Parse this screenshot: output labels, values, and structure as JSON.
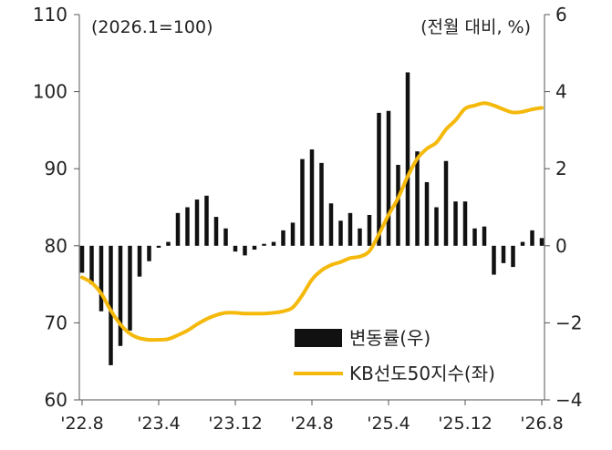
{
  "chart_data": {
    "type": "bar+line",
    "left_axis_note": "(2026.1=100)",
    "right_axis_note": "(전월 대비, %)",
    "left_axis": {
      "ylim": [
        60,
        110
      ],
      "ticks": [
        "60",
        "70",
        "80",
        "90",
        "100",
        "110"
      ]
    },
    "right_axis": {
      "ylim": [
        -4,
        6
      ],
      "ticks": [
        "-4",
        "-2",
        "0",
        "2",
        "4",
        "6"
      ]
    },
    "x_tick_labels": [
      "'22.8",
      "'23.4",
      "'23.12",
      "'24.8",
      "'25.4",
      "'25.12",
      "'26.8"
    ],
    "x_tick_months": [
      0,
      8,
      16,
      24,
      32,
      40,
      48
    ],
    "legend": [
      {
        "label": "변동률(우)",
        "kind": "bar",
        "axis": "right"
      },
      {
        "label": "KB선도50지수(좌)",
        "kind": "line",
        "axis": "left"
      }
    ],
    "colors": {
      "bar": "#111111",
      "line": "#f5b90c",
      "axis": "#555555"
    },
    "series": [
      {
        "name": "변동률(우)",
        "axis": "right",
        "type": "bar",
        "x": [
          0,
          1,
          2,
          3,
          4,
          5,
          6,
          7,
          8,
          9,
          10,
          11,
          12,
          13,
          14,
          15,
          16,
          17,
          18,
          19,
          20,
          21,
          22,
          23,
          24,
          25,
          26,
          27,
          28,
          29,
          30,
          31,
          32,
          33,
          34,
          35,
          36,
          37,
          38,
          39,
          40,
          41,
          42,
          43,
          44,
          45,
          46,
          47,
          48
        ],
        "values": [
          -0.7,
          -1.0,
          -1.7,
          -3.1,
          -2.6,
          -2.2,
          -0.8,
          -0.4,
          -0.05,
          0.1,
          0.85,
          1.0,
          1.2,
          1.3,
          0.75,
          0.45,
          -0.15,
          -0.25,
          -0.1,
          0.05,
          0.1,
          0.4,
          0.6,
          2.25,
          2.5,
          2.15,
          1.1,
          0.65,
          0.85,
          0.45,
          0.8,
          3.45,
          3.5,
          2.1,
          4.5,
          2.45,
          1.65,
          1.0,
          2.2,
          1.15,
          1.15,
          0.45,
          0.5,
          -0.75,
          -0.45,
          -0.55,
          0.1,
          0.4,
          0.2
        ]
      },
      {
        "name": "KB선도50지수(좌)",
        "axis": "left",
        "type": "line",
        "x": [
          0,
          1,
          2,
          3,
          4,
          5,
          6,
          7,
          8,
          9,
          10,
          11,
          12,
          13,
          14,
          15,
          16,
          17,
          18,
          19,
          20,
          21,
          22,
          23,
          24,
          25,
          26,
          27,
          28,
          29,
          30,
          31,
          32,
          33,
          34,
          35,
          36,
          37,
          38,
          39,
          40,
          41,
          42,
          43,
          44,
          45,
          46,
          47,
          48
        ],
        "values": [
          75.9,
          75.2,
          73.8,
          71.6,
          69.8,
          68.6,
          68.0,
          67.8,
          67.8,
          67.9,
          68.4,
          69.0,
          69.8,
          70.5,
          71.0,
          71.3,
          71.3,
          71.2,
          71.2,
          71.2,
          71.3,
          71.5,
          72.0,
          73.6,
          75.6,
          76.8,
          77.5,
          77.9,
          78.4,
          78.6,
          79.3,
          81.5,
          84.0,
          86.2,
          89.0,
          91.3,
          92.6,
          93.4,
          95.1,
          96.3,
          97.8,
          98.2,
          98.5,
          98.2,
          97.7,
          97.3,
          97.4,
          97.7,
          97.9
        ]
      }
    ]
  }
}
